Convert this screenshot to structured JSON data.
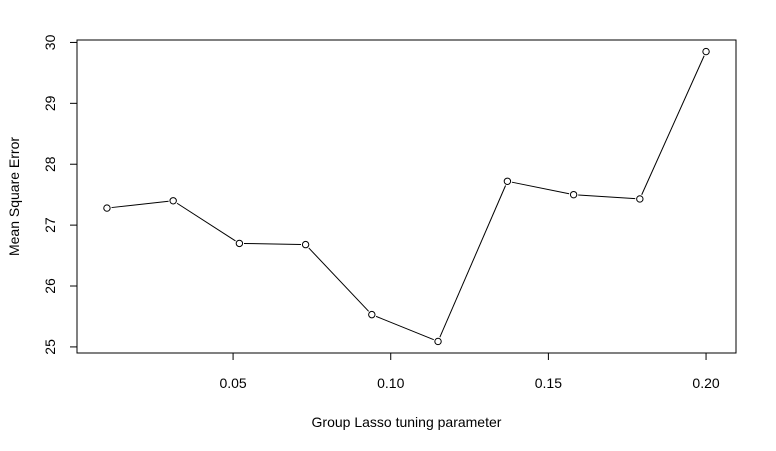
{
  "chart_data": {
    "type": "line",
    "title": "",
    "xlabel": "Group Lasso tuning parameter",
    "ylabel": "Mean Square Error",
    "x": [
      0.01,
      0.031,
      0.052,
      0.073,
      0.094,
      0.115,
      0.137,
      0.158,
      0.179,
      0.2
    ],
    "series": [
      {
        "values": [
          27.28,
          27.4,
          26.7,
          26.68,
          25.53,
          25.09,
          27.72,
          27.5,
          27.43,
          29.85
        ]
      }
    ],
    "xlim": [
      0.0005,
      0.2095
    ],
    "ylim": [
      24.9,
      30.04
    ],
    "xticks": [
      0.05,
      0.1,
      0.15,
      0.2
    ],
    "xtick_labels": [
      "0.05",
      "0.10",
      "0.15",
      "0.20"
    ],
    "yticks": [
      25,
      26,
      27,
      28,
      29,
      30
    ],
    "ytick_labels": [
      "25",
      "26",
      "27",
      "28",
      "29",
      "30"
    ],
    "grid": false,
    "legend": "none",
    "line_color": "#000000",
    "marker": "open-circle"
  }
}
